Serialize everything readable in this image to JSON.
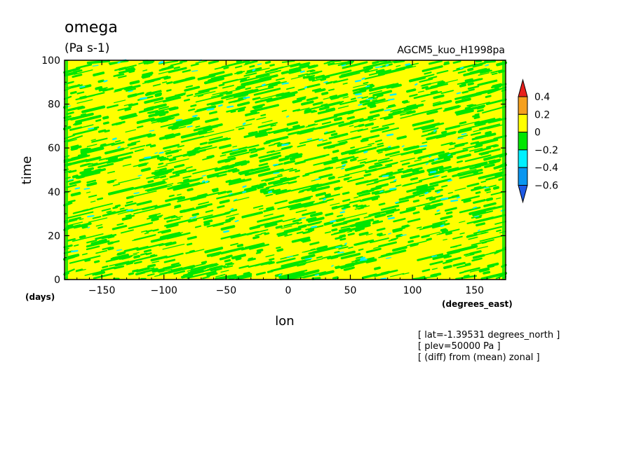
{
  "chart_data": {
    "type": "heatmap",
    "title": "omega",
    "units": "(Pa s-1)",
    "source": "AGCM5_kuo_H1998pa",
    "xlabel": "lon",
    "ylabel": "time",
    "x_units": "(degrees_east)",
    "y_units": "(days)",
    "xlim": [
      -180,
      175
    ],
    "ylim": [
      0,
      100
    ],
    "x_ticks": [
      -150,
      -100,
      -50,
      0,
      50,
      100,
      150
    ],
    "y_ticks": [
      0,
      20,
      40,
      60,
      80,
      100
    ],
    "colorbar": {
      "levels": [
        "0.4",
        "0.2",
        "0",
        "-0.2",
        "-0.4",
        "-0.6"
      ],
      "colors": [
        "#e8201c",
        "#f5a01e",
        "#ffff00",
        "#00e600",
        "#00f0ff",
        "#0a96f0",
        "#1e5ae6"
      ]
    },
    "pattern": "mostly 0 to 0.2 (yellow) with streaks of -0.2 to 0 (green) and sparse -0.4 to -0.2 (cyan), tilting eastward with time",
    "notes": [
      "[ lat=-1.39531 degrees_north ]",
      "[ plev=50000 Pa ]",
      "[ (diff) from (mean) zonal ]"
    ]
  }
}
